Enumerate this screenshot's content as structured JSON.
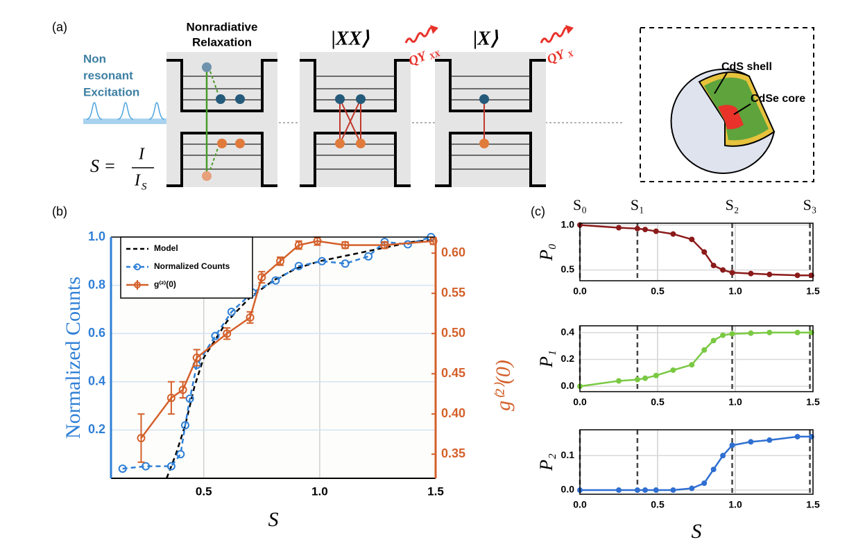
{
  "panel_labels": [
    "(a)",
    "(b)",
    "(c)"
  ],
  "panel_a": {
    "relaxation_label": [
      "Nonradiative",
      "Relaxation"
    ],
    "excitation_label": [
      "Non",
      "resonant",
      "Excitation"
    ],
    "formula": {
      "lhs": "S =",
      "numerator": "I",
      "denominator": "I",
      "subscript": "S"
    },
    "state_xx": "|XX⟩",
    "state_x": "|X⟩",
    "qy_xx": {
      "main": "QY",
      "sub": "XX"
    },
    "qy_x": {
      "main": "QY",
      "sub": "X"
    },
    "shell_label": "CdS shell",
    "core_label": "CdSe core"
  },
  "chart_data": [
    {
      "type": "line",
      "xlabel": "S",
      "ylabel": "Normalized Counts",
      "y2label": "g⁽²⁾(0)",
      "xlim": [
        0.1,
        1.5
      ],
      "xticks": [
        0.5,
        {
          "value": 1,
          "label": "1.0"
        },
        1.5
      ],
      "ylim": [
        0,
        1
      ],
      "yticks": [
        0.2,
        0.4,
        0.6,
        0.8,
        {
          "value": 1,
          "label": "1.0"
        }
      ],
      "y2lim": [
        0.32,
        0.62
      ],
      "y2ticks": [
        0.35,
        {
          "value": 0.4,
          "label": "0.40"
        },
        0.45,
        {
          "value": 0.5,
          "label": "0.50"
        },
        0.55,
        {
          "value": 0.6,
          "label": "0.60"
        }
      ],
      "ycolor": "#2e7fd6",
      "y2color": "#d4602a",
      "grid": true,
      "grid_color": "#d4e3f3",
      "legend": "upper left",
      "series": [
        {
          "name": "Model",
          "color": "#000000",
          "style": "dashed",
          "x": [
            0.34,
            0.38,
            0.42,
            0.46,
            0.5,
            0.6,
            0.7,
            0.8,
            0.9,
            1.0,
            1.1,
            1.2,
            1.3,
            1.4,
            1.5
          ],
          "values": [
            0,
            0.1,
            0.22,
            0.38,
            0.5,
            0.65,
            0.75,
            0.82,
            0.87,
            0.9,
            0.92,
            0.94,
            0.96,
            0.98,
            0.99
          ]
        },
        {
          "name": "Normalized Counts",
          "color": "#2e7fd6",
          "style": "dashed",
          "marker": "open-circle",
          "x": [
            0.15,
            0.25,
            0.36,
            0.4,
            0.42,
            0.44,
            0.47,
            0.55,
            0.62,
            0.71,
            0.81,
            0.91,
            1.01,
            1.11,
            1.21,
            1.28,
            1.38,
            1.48
          ],
          "values": [
            0.04,
            0.05,
            0.05,
            0.1,
            0.22,
            0.33,
            0.47,
            0.59,
            0.69,
            0.77,
            0.82,
            0.88,
            0.9,
            0.89,
            0.92,
            0.98,
            0.97,
            1.0
          ]
        },
        {
          "name": "g⁽²⁾(0)",
          "color": "#d4602a",
          "style": "solid",
          "marker": "open-circle",
          "axis": "y2",
          "x": [
            0.23,
            0.36,
            0.41,
            0.47,
            0.6,
            0.7,
            0.75,
            0.83,
            0.91,
            0.99,
            1.11,
            1.28,
            1.49
          ],
          "values": [
            0.37,
            0.42,
            0.43,
            0.47,
            0.5,
            0.52,
            0.57,
            0.59,
            0.61,
            0.615,
            0.61,
            0.61,
            0.615
          ],
          "errors": [
            0.03,
            0.02,
            0.01,
            0.01,
            0.007,
            0.007,
            0.007,
            0.005,
            0.005,
            0.005,
            0.004,
            0.004,
            0.004
          ]
        }
      ]
    },
    {
      "type": "line",
      "ylabel": "P₀",
      "xlim": [
        0,
        1.5
      ],
      "xticks": [
        {
          "value": 0,
          "label": "0.0"
        },
        0.5,
        {
          "value": 1,
          "label": "1.0"
        },
        1.5
      ],
      "ylim": [
        0.38,
        1.02
      ],
      "yticks": [
        0.5,
        {
          "value": 1,
          "label": "1.0"
        }
      ],
      "grid": true,
      "grid_color": "#d9d9d9",
      "vlines": [
        0,
        0.37,
        0.98,
        1.48
      ],
      "vline_labels": [
        "S₀",
        "S₁",
        "S₂",
        "S₃"
      ],
      "series": [
        {
          "color": "#8b1a1a",
          "style": "solid",
          "marker": "dot",
          "x": [
            0,
            0.25,
            0.37,
            0.42,
            0.49,
            0.6,
            0.72,
            0.8,
            0.86,
            0.92,
            0.98,
            1.1,
            1.22,
            1.4,
            1.49
          ],
          "values": [
            1.0,
            0.97,
            0.96,
            0.95,
            0.93,
            0.9,
            0.84,
            0.7,
            0.55,
            0.5,
            0.47,
            0.46,
            0.45,
            0.44,
            0.44
          ]
        }
      ]
    },
    {
      "type": "line",
      "ylabel": "P₁",
      "xlim": [
        0,
        1.5
      ],
      "xticks": [
        {
          "value": 0,
          "label": "0.0"
        },
        0.5,
        {
          "value": 1,
          "label": "1.0"
        },
        1.5
      ],
      "ylim": [
        -0.04,
        0.45
      ],
      "yticks": [
        {
          "value": 0,
          "label": "0.0"
        },
        0.2,
        0.4
      ],
      "grid": true,
      "grid_color": "#d9d9d9",
      "vlines": [
        0,
        0.37,
        0.98,
        1.48
      ],
      "series": [
        {
          "color": "#7ac943",
          "style": "solid",
          "marker": "dot",
          "x": [
            0,
            0.25,
            0.37,
            0.42,
            0.49,
            0.6,
            0.72,
            0.8,
            0.86,
            0.92,
            0.98,
            1.1,
            1.22,
            1.4,
            1.49
          ],
          "values": [
            0,
            0.04,
            0.05,
            0.06,
            0.08,
            0.12,
            0.16,
            0.27,
            0.34,
            0.38,
            0.39,
            0.395,
            0.4,
            0.4,
            0.4
          ]
        }
      ]
    },
    {
      "type": "line",
      "ylabel": "P₂",
      "xlabel": "S",
      "xlim": [
        0,
        1.5
      ],
      "xticks": [
        {
          "value": 0,
          "label": "0.0"
        },
        0.5,
        {
          "value": 1,
          "label": "1.0"
        },
        1.5
      ],
      "ylim": [
        -0.012,
        0.175
      ],
      "yticks": [
        {
          "value": 0,
          "label": "0.0"
        },
        0.1
      ],
      "grid": true,
      "grid_color": "#d9d9d9",
      "vlines": [
        0,
        0.37,
        0.98,
        1.48
      ],
      "series": [
        {
          "color": "#2f6fd1",
          "style": "solid",
          "marker": "dot",
          "x": [
            0,
            0.25,
            0.37,
            0.42,
            0.49,
            0.6,
            0.72,
            0.8,
            0.86,
            0.92,
            0.98,
            1.1,
            1.22,
            1.4,
            1.49
          ],
          "values": [
            0,
            0,
            0,
            0,
            0,
            0,
            0.005,
            0.02,
            0.06,
            0.1,
            0.13,
            0.14,
            0.145,
            0.155,
            0.155
          ]
        }
      ]
    }
  ]
}
